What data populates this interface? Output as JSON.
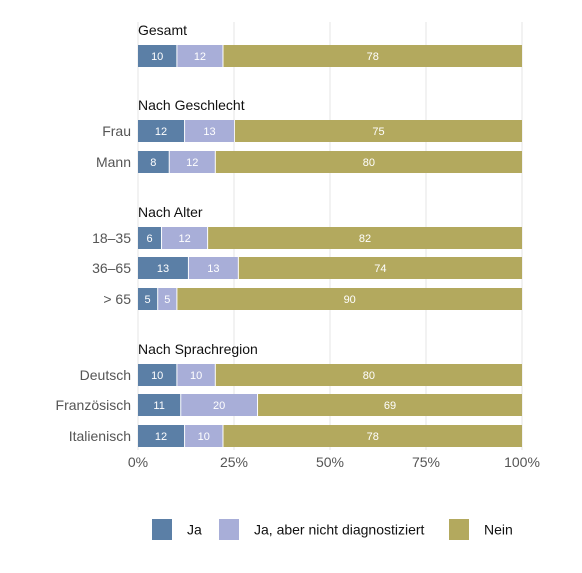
{
  "chart_data": {
    "type": "bar",
    "orientation": "horizontal",
    "stacked": true,
    "series": [
      {
        "name": "Ja",
        "color": "#5b7fa6"
      },
      {
        "name": "Ja, aber nicht diagnostiziert",
        "color": "#a8aed8"
      },
      {
        "name": "Nein",
        "color": "#b3a95e"
      }
    ],
    "groups": [
      {
        "title": "Gesamt",
        "rows": [
          {
            "label": "",
            "values": [
              10,
              12,
              78
            ]
          }
        ]
      },
      {
        "title": "Nach Geschlecht",
        "rows": [
          {
            "label": "Frau",
            "values": [
              12,
              13,
              75
            ]
          },
          {
            "label": "Mann",
            "values": [
              8,
              12,
              80
            ]
          }
        ]
      },
      {
        "title": "Nach Alter",
        "rows": [
          {
            "label": "18–35",
            "values": [
              6,
              12,
              82
            ]
          },
          {
            "label": "36–65",
            "values": [
              13,
              13,
              74
            ]
          },
          {
            "label": "> 65",
            "values": [
              5,
              5,
              90
            ]
          }
        ]
      },
      {
        "title": "Nach Sprachregion",
        "rows": [
          {
            "label": "Deutsch",
            "values": [
              10,
              10,
              80
            ]
          },
          {
            "label": "Französisch",
            "values": [
              11,
              20,
              69
            ]
          },
          {
            "label": "Italienisch",
            "values": [
              12,
              10,
              78
            ]
          }
        ]
      }
    ],
    "xlim": [
      0,
      100
    ],
    "x_ticks": [
      "0%",
      "25%",
      "50%",
      "75%",
      "100%"
    ],
    "grid": true,
    "legend_position": "bottom"
  }
}
